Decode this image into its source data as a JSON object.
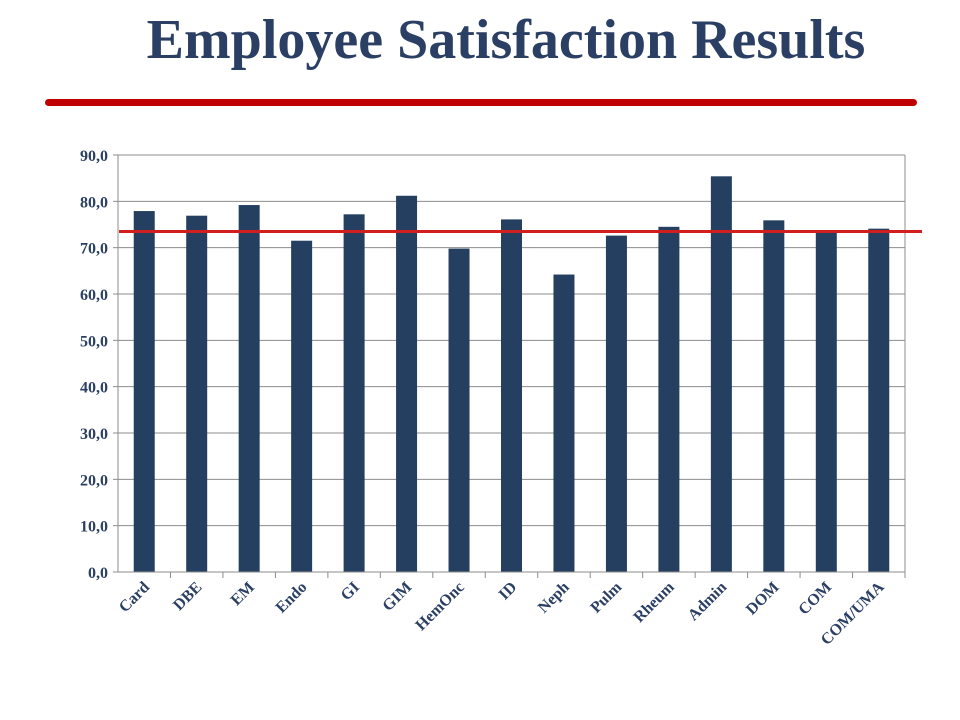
{
  "title": "Employee Satisfaction Results",
  "colors": {
    "title": "#2a3f63",
    "rule": "#c00000",
    "bar": "#243f60",
    "reference_line": "#d11e1e",
    "grid": "#8c8c8c",
    "tick_text": "#2a3f63"
  },
  "chart_data": {
    "type": "bar",
    "title": "",
    "xlabel": "",
    "ylabel": "",
    "ylim": [
      0,
      90
    ],
    "ytick_step": 10,
    "ytick_labels": [
      "0,0",
      "10,0",
      "20,0",
      "30,0",
      "40,0",
      "50,0",
      "60,0",
      "70,0",
      "80,0",
      "90,0"
    ],
    "grid": true,
    "legend": "none",
    "categories": [
      "Card",
      "DBE",
      "EM",
      "Endo",
      "GI",
      "GIM",
      "HemOnc",
      "ID",
      "Neph",
      "Pulm",
      "Rheum",
      "Admin",
      "DOM",
      "COM",
      "COM/UMA"
    ],
    "values": [
      77.9,
      76.9,
      79.2,
      71.5,
      77.2,
      81.2,
      69.8,
      76.1,
      64.2,
      72.6,
      74.5,
      85.4,
      75.9,
      73.8,
      74.1
    ],
    "reference_line": 73.5
  }
}
